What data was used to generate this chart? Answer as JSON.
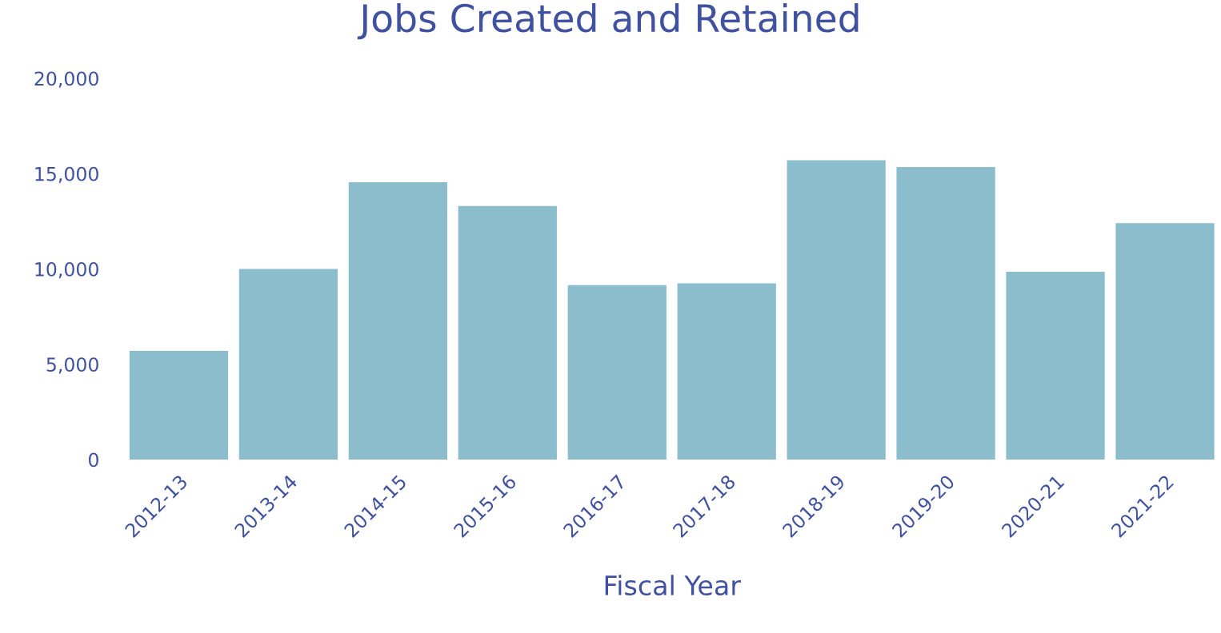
{
  "chart_data": {
    "type": "bar",
    "title": "Jobs Created and Retained",
    "xlabel": "Fiscal Year",
    "categories": [
      "2012-13",
      "2013-14",
      "2014-15",
      "2015-16",
      "2016-17",
      "2017-18",
      "2018-19",
      "2019-20",
      "2020-21",
      "2021-22"
    ],
    "values": [
      5700,
      10000,
      14550,
      13300,
      9150,
      9250,
      15700,
      15350,
      9850,
      12400
    ],
    "color": "#8bbdcc",
    "ylim": [
      0,
      20000
    ],
    "yticks": [
      {
        "value": 0,
        "label": "0"
      },
      {
        "value": 5000,
        "label": "5,000"
      },
      {
        "value": 10000,
        "label": "10,000"
      },
      {
        "value": 15000,
        "label": "15,000"
      },
      {
        "value": 20000,
        "label": "20,000"
      }
    ],
    "grid": false,
    "legend": false
  }
}
